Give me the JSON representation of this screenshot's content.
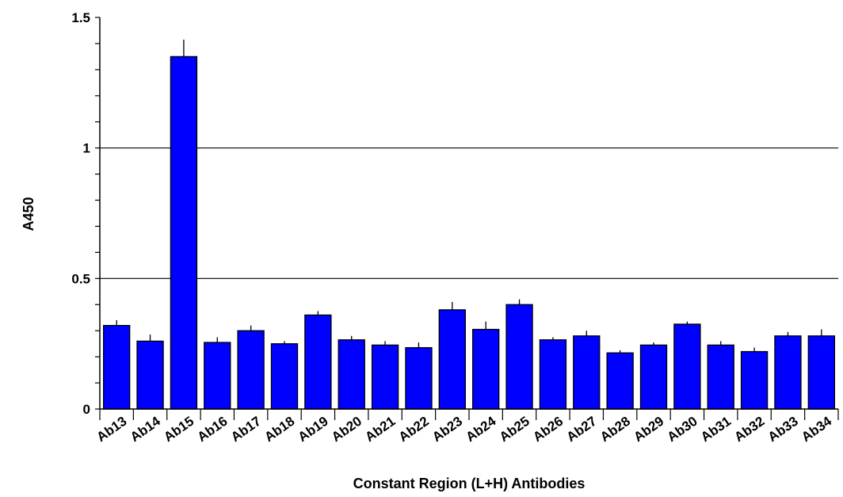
{
  "chart_data": {
    "type": "bar",
    "title": "",
    "xlabel": "Constant Region (L+H) Antibodies",
    "ylabel": "A450",
    "ylim": [
      0,
      1.5
    ],
    "y_ticks": [
      0,
      0.5,
      1,
      1.5
    ],
    "y_tick_labels": [
      "0",
      "0.5",
      "1",
      "1.5"
    ],
    "y_minor_step": 0.1,
    "gridlines_y": [
      0.5,
      1
    ],
    "grid": true,
    "categories": [
      "Ab13",
      "Ab14",
      "Ab15",
      "Ab16",
      "Ab17",
      "Ab18",
      "Ab19",
      "Ab20",
      "Ab21",
      "Ab22",
      "Ab23",
      "Ab24",
      "Ab25",
      "Ab26",
      "Ab27",
      "Ab28",
      "Ab29",
      "Ab30",
      "Ab31",
      "Ab32",
      "Ab33",
      "Ab34"
    ],
    "series": [
      {
        "values": [
          0.32,
          0.26,
          1.35,
          0.255,
          0.3,
          0.25,
          0.36,
          0.265,
          0.245,
          0.235,
          0.38,
          0.305,
          0.4,
          0.265,
          0.28,
          0.215,
          0.245,
          0.325,
          0.245,
          0.22,
          0.28,
          0.28
        ],
        "error": [
          0.02,
          0.025,
          0.065,
          0.02,
          0.02,
          0.01,
          0.015,
          0.015,
          0.015,
          0.02,
          0.03,
          0.03,
          0.02,
          0.01,
          0.02,
          0.01,
          0.01,
          0.01,
          0.015,
          0.015,
          0.015,
          0.025
        ],
        "color": "#0000ff"
      }
    ]
  }
}
